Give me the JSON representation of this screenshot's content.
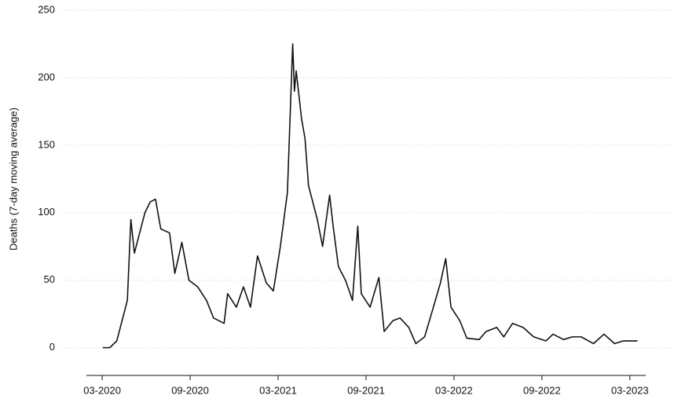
{
  "chart_data": {
    "type": "line",
    "y_label": "Deaths (7-day moving average)",
    "x": [
      2020.17,
      2020.21,
      2020.25,
      2020.29,
      2020.31,
      2020.33,
      2020.35,
      2020.38,
      2020.41,
      2020.44,
      2020.47,
      2020.5,
      2020.55,
      2020.58,
      2020.62,
      2020.66,
      2020.71,
      2020.76,
      2020.8,
      2020.86,
      2020.88,
      2020.93,
      2020.97,
      2021.01,
      2021.05,
      2021.1,
      2021.14,
      2021.18,
      2021.22,
      2021.25,
      2021.26,
      2021.27,
      2021.3,
      2021.32,
      2021.34,
      2021.36,
      2021.39,
      2021.42,
      2021.46,
      2021.48,
      2021.51,
      2021.55,
      2021.59,
      2021.62,
      2021.64,
      2021.69,
      2021.74,
      2021.77,
      2021.82,
      2021.86,
      2021.91,
      2021.95,
      2022.0,
      2022.05,
      2022.09,
      2022.12,
      2022.15,
      2022.2,
      2022.24,
      2022.31,
      2022.35,
      2022.41,
      2022.45,
      2022.5,
      2022.56,
      2022.62,
      2022.69,
      2022.73,
      2022.79,
      2022.84,
      2022.89,
      2022.96,
      2023.02,
      2023.08,
      2023.13,
      2023.21
    ],
    "series": [
      {
        "name": "Deaths",
        "color": "#111111",
        "values": [
          0,
          0,
          5,
          25,
          35,
          95,
          70,
          85,
          100,
          108,
          110,
          88,
          85,
          55,
          78,
          50,
          45,
          35,
          22,
          18,
          40,
          30,
          45,
          30,
          68,
          48,
          42,
          75,
          115,
          225,
          190,
          205,
          170,
          155,
          120,
          110,
          95,
          75,
          113,
          90,
          60,
          50,
          35,
          90,
          40,
          30,
          52,
          12,
          20,
          22,
          15,
          3,
          8,
          30,
          48,
          66,
          30,
          20,
          7,
          6,
          12,
          15,
          8,
          18,
          15,
          8,
          5,
          10,
          6,
          8,
          8,
          3,
          10,
          3,
          5,
          5
        ]
      }
    ],
    "xlim": [
      2020.0,
      2023.4
    ],
    "xticks": [
      {
        "value": 2020.167,
        "label": "03-2020"
      },
      {
        "value": 2020.667,
        "label": "09-2020"
      },
      {
        "value": 2021.167,
        "label": "03-2021"
      },
      {
        "value": 2021.667,
        "label": "09-2021"
      },
      {
        "value": 2022.167,
        "label": "03-2022"
      },
      {
        "value": 2022.667,
        "label": "09-2022"
      },
      {
        "value": 2023.167,
        "label": "03-2023"
      }
    ],
    "ylim": [
      -20,
      250
    ],
    "yticks": [
      0,
      50,
      100,
      150,
      200,
      250
    ],
    "grid": true
  }
}
